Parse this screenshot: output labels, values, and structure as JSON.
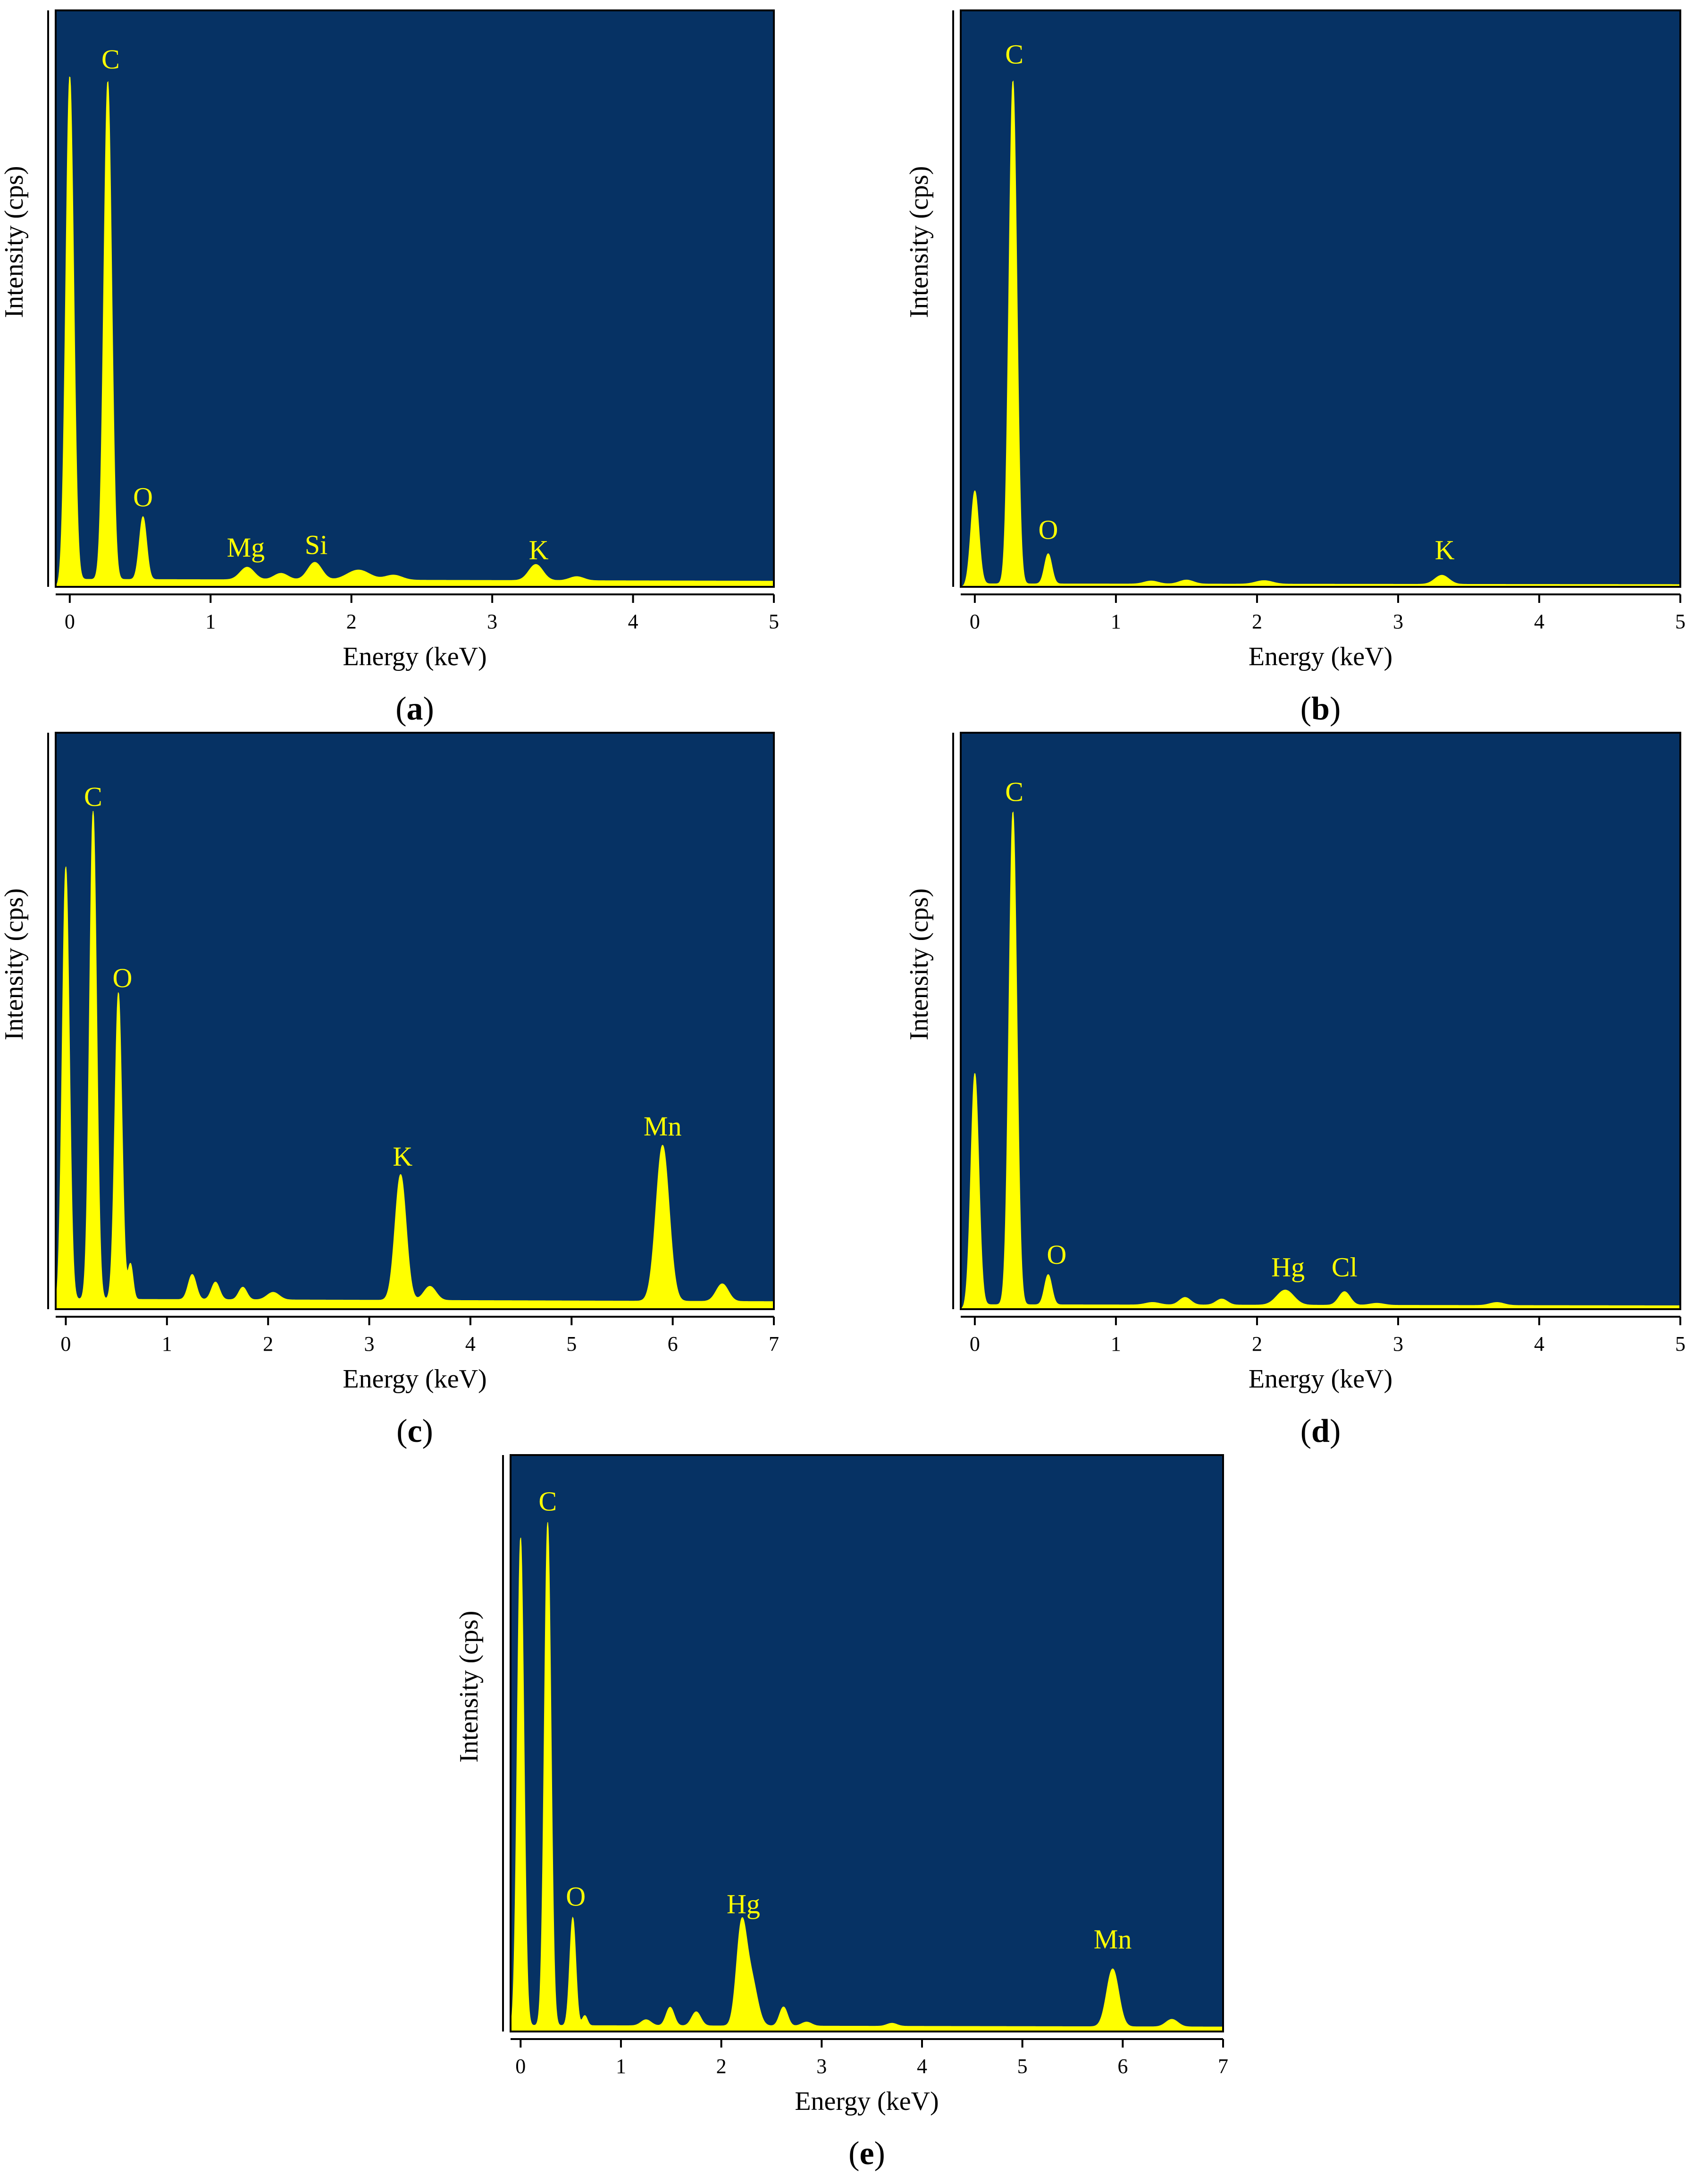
{
  "colors": {
    "plot_background": "#063264",
    "spectrum": "#FFFF00",
    "peak_label": "#FFFF00",
    "axis": "#000000"
  },
  "chart_data": [
    {
      "id": "a",
      "type": "area",
      "caption_open": "(",
      "caption_letter": "a",
      "caption_close": ")",
      "xlabel": "Energy (keV)",
      "ylabel": "Intensity (cps)",
      "xlim": [
        -0.1,
        5
      ],
      "ylim": [
        0,
        100
      ],
      "xticks": [
        0,
        1,
        2,
        3,
        4,
        5
      ],
      "xtick_labels": [
        "0",
        "1",
        "2",
        "3",
        "4",
        "5"
      ],
      "baseline": 1.5,
      "peaks": [
        {
          "x": 0.0,
          "y": 100,
          "w": 0.028
        },
        {
          "x": 0.27,
          "y": 99,
          "w": 0.028
        },
        {
          "x": 0.52,
          "y": 12.5,
          "w": 0.026
        },
        {
          "x": 1.26,
          "y": 2.5,
          "w": 0.05
        },
        {
          "x": 1.5,
          "y": 1.3,
          "w": 0.05
        },
        {
          "x": 1.74,
          "y": 3.5,
          "w": 0.05
        },
        {
          "x": 2.05,
          "y": 2.0,
          "w": 0.08
        },
        {
          "x": 2.3,
          "y": 1.0,
          "w": 0.06
        },
        {
          "x": 3.31,
          "y": 3.2,
          "w": 0.05
        },
        {
          "x": 3.6,
          "y": 0.8,
          "w": 0.05
        }
      ],
      "labels": [
        {
          "text": "C",
          "x": 0.29,
          "y": 103
        },
        {
          "text": "O",
          "x": 0.52,
          "y": 16
        },
        {
          "text": "Mg",
          "x": 1.25,
          "y": 6
        },
        {
          "text": "Si",
          "x": 1.75,
          "y": 6.5
        },
        {
          "text": "K",
          "x": 3.33,
          "y": 5.5
        }
      ]
    },
    {
      "id": "b",
      "type": "area",
      "caption_open": "(",
      "caption_letter": "b",
      "caption_close": ")",
      "xlabel": "Energy (keV)",
      "ylabel": "Intensity (cps)",
      "xlim": [
        -0.1,
        5
      ],
      "ylim": [
        0,
        100
      ],
      "xticks": [
        0,
        1,
        2,
        3,
        4,
        5
      ],
      "xtick_labels": [
        "0",
        "1",
        "2",
        "3",
        "4",
        "5"
      ],
      "baseline": 0.6,
      "peaks": [
        {
          "x": 0.0,
          "y": 18.5,
          "w": 0.028
        },
        {
          "x": 0.27,
          "y": 100,
          "w": 0.028
        },
        {
          "x": 0.52,
          "y": 6.0,
          "w": 0.026
        },
        {
          "x": 1.25,
          "y": 0.6,
          "w": 0.05
        },
        {
          "x": 1.5,
          "y": 0.8,
          "w": 0.05
        },
        {
          "x": 2.05,
          "y": 0.7,
          "w": 0.06
        },
        {
          "x": 3.31,
          "y": 1.8,
          "w": 0.05
        }
      ],
      "labels": [
        {
          "text": "C",
          "x": 0.28,
          "y": 104
        },
        {
          "text": "O",
          "x": 0.52,
          "y": 9.5
        },
        {
          "text": "K",
          "x": 3.33,
          "y": 5.5
        }
      ]
    },
    {
      "id": "c",
      "type": "area",
      "caption_open": "(",
      "caption_letter": "c",
      "caption_close": ")",
      "xlabel": "Energy (keV)",
      "ylabel": "Intensity (cps)",
      "xlim": [
        -0.1,
        7
      ],
      "ylim": [
        0,
        100
      ],
      "xticks": [
        0,
        1,
        2,
        3,
        4,
        5,
        6,
        7
      ],
      "xtick_labels": [
        "0",
        "1",
        "2",
        "3",
        "4",
        "5",
        "6",
        "7"
      ],
      "baseline": 2.0,
      "peaks": [
        {
          "x": 0.0,
          "y": 86,
          "w": 0.035
        },
        {
          "x": 0.27,
          "y": 97,
          "w": 0.035
        },
        {
          "x": 0.52,
          "y": 61,
          "w": 0.035
        },
        {
          "x": 0.64,
          "y": 7,
          "w": 0.025
        },
        {
          "x": 1.25,
          "y": 5,
          "w": 0.04
        },
        {
          "x": 1.48,
          "y": 3.5,
          "w": 0.04
        },
        {
          "x": 1.75,
          "y": 2.5,
          "w": 0.04
        },
        {
          "x": 2.05,
          "y": 1.5,
          "w": 0.06
        },
        {
          "x": 3.31,
          "y": 25,
          "w": 0.055
        },
        {
          "x": 3.6,
          "y": 2.8,
          "w": 0.06
        },
        {
          "x": 5.9,
          "y": 31,
          "w": 0.065
        },
        {
          "x": 6.49,
          "y": 3.5,
          "w": 0.06
        }
      ],
      "labels": [
        {
          "text": "C",
          "x": 0.27,
          "y": 100
        },
        {
          "text": "O",
          "x": 0.56,
          "y": 64
        },
        {
          "text": "K",
          "x": 3.33,
          "y": 28.5
        },
        {
          "text": "Mn",
          "x": 5.9,
          "y": 34.5
        }
      ]
    },
    {
      "id": "d",
      "type": "area",
      "caption_open": "(",
      "caption_letter": "d",
      "caption_close": ")",
      "xlabel": "Energy (keV)",
      "ylabel": "Intensity (cps)",
      "xlim": [
        -0.1,
        5
      ],
      "ylim": [
        0,
        100
      ],
      "xticks": [
        0,
        1,
        2,
        3,
        4,
        5
      ],
      "xtick_labels": [
        "0",
        "1",
        "2",
        "3",
        "4",
        "5"
      ],
      "baseline": 0.9,
      "peaks": [
        {
          "x": 0.0,
          "y": 46,
          "w": 0.028
        },
        {
          "x": 0.27,
          "y": 98,
          "w": 0.028
        },
        {
          "x": 0.52,
          "y": 6.0,
          "w": 0.026
        },
        {
          "x": 1.26,
          "y": 0.5,
          "w": 0.05
        },
        {
          "x": 1.49,
          "y": 1.5,
          "w": 0.04
        },
        {
          "x": 1.75,
          "y": 1.2,
          "w": 0.04
        },
        {
          "x": 2.2,
          "y": 3.0,
          "w": 0.06
        },
        {
          "x": 2.62,
          "y": 2.7,
          "w": 0.04
        },
        {
          "x": 2.85,
          "y": 0.4,
          "w": 0.05
        },
        {
          "x": 3.7,
          "y": 0.6,
          "w": 0.05
        }
      ],
      "labels": [
        {
          "text": "C",
          "x": 0.28,
          "y": 101
        },
        {
          "text": "O",
          "x": 0.58,
          "y": 9
        },
        {
          "text": "Hg",
          "x": 2.22,
          "y": 6.5
        },
        {
          "text": "Cl",
          "x": 2.62,
          "y": 6.5
        }
      ]
    },
    {
      "id": "e",
      "type": "area",
      "caption_open": "(",
      "caption_letter": "e",
      "caption_close": ")",
      "xlabel": "Energy (keV)",
      "ylabel": "Intensity (cps)",
      "xlim": [
        -0.1,
        7
      ],
      "ylim": [
        0,
        100
      ],
      "xticks": [
        0,
        1,
        2,
        3,
        4,
        5,
        6,
        7
      ],
      "xtick_labels": [
        "0",
        "1",
        "2",
        "3",
        "4",
        "5",
        "6",
        "7"
      ],
      "baseline": 1.2,
      "peaks": [
        {
          "x": 0.0,
          "y": 97,
          "w": 0.033
        },
        {
          "x": 0.27,
          "y": 100,
          "w": 0.033
        },
        {
          "x": 0.52,
          "y": 21.5,
          "w": 0.03
        },
        {
          "x": 0.64,
          "y": 2.0,
          "w": 0.025
        },
        {
          "x": 1.25,
          "y": 1.2,
          "w": 0.05
        },
        {
          "x": 1.49,
          "y": 3.7,
          "w": 0.04
        },
        {
          "x": 1.75,
          "y": 2.8,
          "w": 0.045
        },
        {
          "x": 2.2,
          "y": 19,
          "w": 0.05
        },
        {
          "x": 2.3,
          "y": 9,
          "w": 0.06
        },
        {
          "x": 2.62,
          "y": 3.8,
          "w": 0.04
        },
        {
          "x": 2.85,
          "y": 0.8,
          "w": 0.05
        },
        {
          "x": 3.7,
          "y": 0.6,
          "w": 0.05
        },
        {
          "x": 5.9,
          "y": 11.5,
          "w": 0.06
        },
        {
          "x": 6.49,
          "y": 1.5,
          "w": 0.06
        }
      ],
      "labels": [
        {
          "text": "C",
          "x": 0.27,
          "y": 103.5
        },
        {
          "text": "O",
          "x": 0.55,
          "y": 25
        },
        {
          "text": "Hg",
          "x": 2.22,
          "y": 23.5
        },
        {
          "text": "Mn",
          "x": 5.9,
          "y": 16.5
        }
      ]
    }
  ]
}
